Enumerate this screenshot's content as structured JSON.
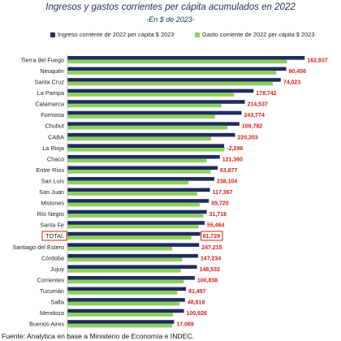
{
  "title": "Ingresos y gastos corrientes per cápita acumulados en 2022",
  "subtitle": "-En $ de 2023-",
  "source": "Fuente: Analytica en base a Ministerio de Economía e INDEC.",
  "colors": {
    "income": "#1f2d5c",
    "expense": "#8bd15c",
    "label": "#d6201a",
    "highlight": "#d6201a"
  },
  "chart_data": {
    "type": "bar",
    "orientation": "horizontal",
    "categories": [
      "Tierra del Fuego",
      "Neuquén",
      "Santa Cruz",
      "La Pampa",
      "Catamarca",
      "Formosa",
      "Chubut",
      "CABA",
      "La Rioja",
      "Chaco",
      "Entre Ríos",
      "San Luis",
      "San Juan",
      "Misiones",
      "Río Negro",
      "Santa Fe",
      "TOTAL",
      "Santiago del Estero",
      "Córdoba",
      "Jujuy",
      "Corrientes",
      "Tucumán",
      "Salta",
      "Mendoza",
      "Buenos Aires"
    ],
    "series": [
      {
        "name": "Ingreso corriente de 2022 per cápita $ 2023",
        "values": [
          2180000,
          2010000,
          1960000,
          1710000,
          1630000,
          1600000,
          1580000,
          1540000,
          1440000,
          1400000,
          1380000,
          1350000,
          1310000,
          1300000,
          1280000,
          1260000,
          1220000,
          1210000,
          1200000,
          1190000,
          1170000,
          1090000,
          1080000,
          1070000,
          980000
        ]
      },
      {
        "name": "Gasto corriente de 2022 per cápita $ 2023",
        "values": [
          2017063,
          1919544,
          1885977,
          1531258,
          1415463,
          1356226,
          1470218,
          1319797,
          1442296,
          1278640,
          1316123,
          1111896,
          1192633,
          1214280,
          1248284,
          1204536,
          1138271,
          962785,
          1052766,
          1041468,
          1069162,
          1008503,
          1031181,
          969074,
          962931
        ]
      }
    ],
    "data_labels": [
      "162,937",
      "90,456",
      "74,023",
      "178,742",
      "214,537",
      "243,774",
      "109,782",
      "220,203",
      "-2,296",
      "121,360",
      "63,877",
      "238,104",
      "117,367",
      "85,720",
      "31,716",
      "55,464",
      "81,729",
      "247,215",
      "147,234",
      "148,532",
      "100,838",
      "81,497",
      "48,819",
      "100,926",
      "17,069"
    ],
    "highlight_category": "TOTAL",
    "xlim": [
      0,
      2200000
    ],
    "grid": false,
    "legend_position": "top"
  }
}
